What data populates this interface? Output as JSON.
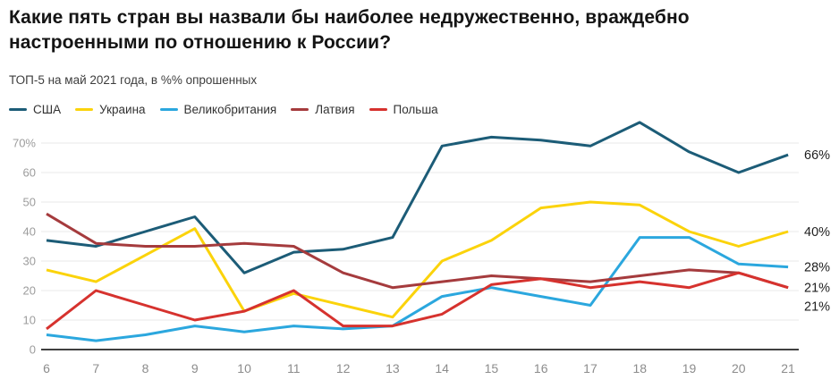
{
  "header": {
    "title": "Какие пять стран вы назвали бы наиболее недружественно, враждебно\nнастроенными по отношению к России?",
    "subtitle": "ТОП-5 на май 2021 года, в %% опрошенных"
  },
  "chart_data": {
    "type": "line",
    "title": "Какие пять стран вы назвали бы наиболее недружественно, враждебно настроенными по отношению к России?",
    "subtitle": "ТОП-5 на май 2021 года, в %% опрошенных",
    "x": [
      6,
      7,
      8,
      9,
      10,
      11,
      12,
      13,
      14,
      15,
      16,
      17,
      18,
      19,
      20,
      21
    ],
    "y_ticks": [
      {
        "v": 0,
        "label": "0"
      },
      {
        "v": 10,
        "label": "10"
      },
      {
        "v": 20,
        "label": "20"
      },
      {
        "v": 30,
        "label": "30"
      },
      {
        "v": 40,
        "label": "40"
      },
      {
        "v": 50,
        "label": "50"
      },
      {
        "v": 60,
        "label": "60"
      },
      {
        "v": 70,
        "label": "70%"
      }
    ],
    "ylim": [
      0,
      78
    ],
    "grid": true,
    "legend_position": "top",
    "series": [
      {
        "name": "США",
        "color": "#1c5c77",
        "end_label": "66%",
        "values": [
          37,
          35,
          40,
          45,
          26,
          33,
          34,
          38,
          69,
          72,
          71,
          69,
          77,
          67,
          60,
          66
        ]
      },
      {
        "name": "Украина",
        "color": "#fbd30b",
        "end_label": "40%",
        "values": [
          27,
          23,
          32,
          41,
          13,
          19,
          15,
          11,
          30,
          37,
          48,
          50,
          49,
          40,
          35,
          40
        ]
      },
      {
        "name": "Великобритания",
        "color": "#2ba7de",
        "end_label": "28%",
        "values": [
          5,
          3,
          5,
          8,
          6,
          8,
          7,
          8,
          18,
          21,
          18,
          15,
          38,
          38,
          29,
          28
        ]
      },
      {
        "name": "Латвия",
        "color": "#a53b3d",
        "end_label": "21%",
        "values": [
          46,
          36,
          35,
          35,
          36,
          35,
          26,
          21,
          23,
          25,
          24,
          23,
          25,
          27,
          26,
          21
        ]
      },
      {
        "name": "Польша",
        "color": "#d6322e",
        "end_label": "21%",
        "values": [
          7,
          20,
          15,
          10,
          13,
          20,
          8,
          8,
          12,
          22,
          24,
          21,
          23,
          21,
          26,
          21
        ]
      }
    ],
    "palette": {
      "grid": "#e9e9e9",
      "axis": "#404040",
      "tick_text": "#9c9c9c",
      "end_label_text": "#1f1f1f"
    }
  }
}
